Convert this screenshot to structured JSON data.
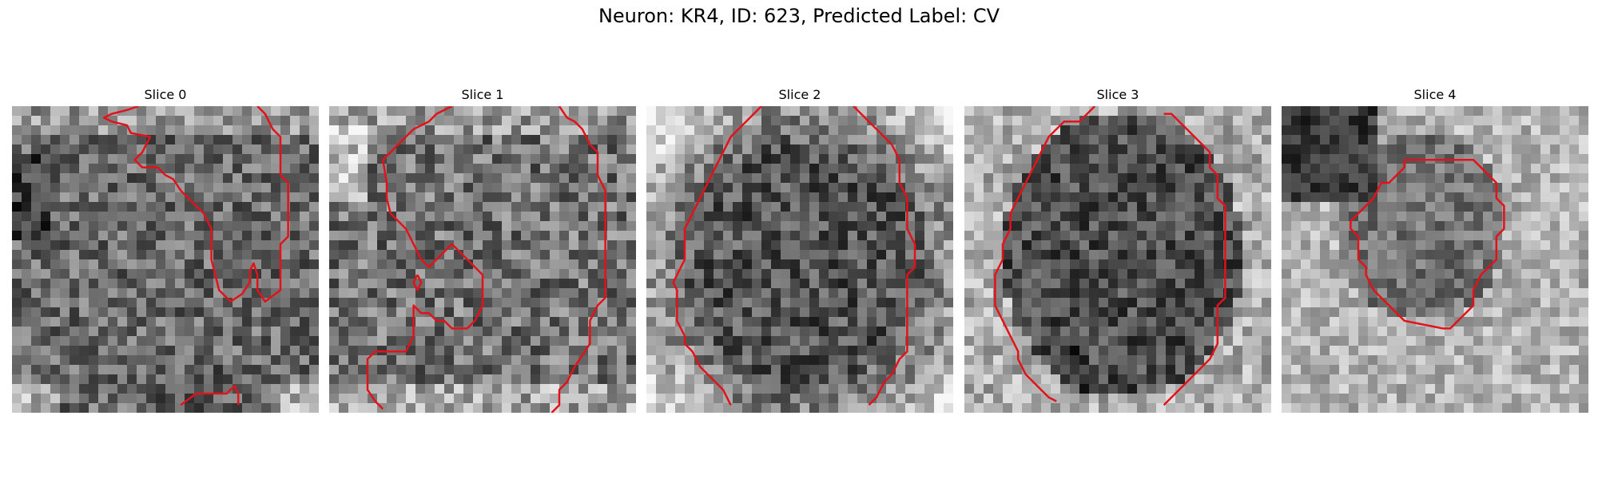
{
  "figure": {
    "title": "Neuron: KR4, ID: 623, Predicted Label: CV"
  },
  "panels": [
    {
      "title": "Slice 0"
    },
    {
      "title": "Slice 1"
    },
    {
      "title": "Slice 2"
    },
    {
      "title": "Slice 3"
    },
    {
      "title": "Slice 4"
    }
  ],
  "colors": {
    "contour": "#e3121a",
    "background": "#ffffff"
  }
}
